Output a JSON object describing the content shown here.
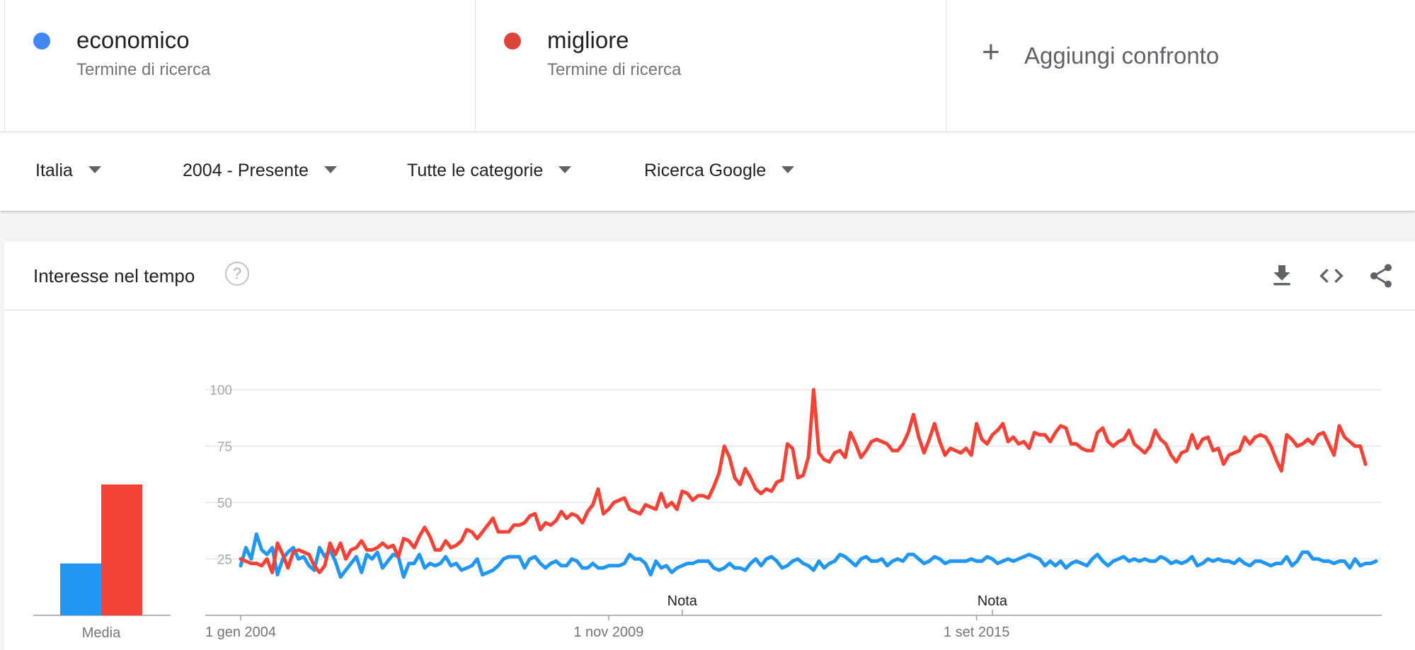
{
  "terms": [
    {
      "name": "economico",
      "subtitle": "Termine di ricerca",
      "color": "#4285f4"
    },
    {
      "name": "migliore",
      "subtitle": "Termine di ricerca",
      "color": "#db4437"
    }
  ],
  "add_compare": {
    "label": "Aggiungi confronto"
  },
  "filters": {
    "region": "Italia",
    "period": "2004 - Presente",
    "category": "Tutte le categorie",
    "property": "Ricerca Google"
  },
  "card": {
    "title": "Interesse nel tempo",
    "help_glyph": "?"
  },
  "icons": {
    "download": "download-icon",
    "embed": "embed-icon",
    "share": "share-icon",
    "help": "help-icon"
  },
  "chart_data": {
    "type": "line",
    "ylim": [
      0,
      100
    ],
    "yticks": [
      "25",
      "50",
      "75",
      "100"
    ],
    "xticks": [
      {
        "label": "1 gen 2004",
        "index": 0
      },
      {
        "label": "1 nov 2009",
        "index": 70
      },
      {
        "label": "1 set 2015",
        "index": 140
      }
    ],
    "notes": [
      {
        "label": "Nota",
        "index": 84
      },
      {
        "label": "Nota",
        "index": 143
      }
    ],
    "average": {
      "label": "Media",
      "values": [
        23,
        58
      ],
      "colors": [
        "#2196f3",
        "#f44336"
      ]
    },
    "series": [
      {
        "color": "#2196f3",
        "values": [
          22,
          30,
          25,
          36,
          29,
          27,
          30,
          18,
          25,
          28,
          30,
          25,
          26,
          22,
          20,
          30,
          26,
          29,
          24,
          17,
          20,
          23,
          26,
          19,
          27,
          25,
          28,
          21,
          24,
          27,
          26,
          17,
          23,
          23,
          27,
          21,
          23,
          22,
          23,
          26,
          22,
          23,
          20,
          21,
          22,
          25,
          18,
          19,
          20,
          22,
          25,
          26,
          26,
          26,
          21,
          25,
          26,
          23,
          21,
          23,
          24,
          22,
          22,
          25,
          24,
          21,
          21,
          23,
          21,
          21,
          22,
          22,
          22,
          23,
          27,
          25,
          25,
          23,
          18,
          24,
          21,
          22,
          19,
          21,
          22,
          23,
          23,
          24,
          24,
          24,
          21,
          20,
          21,
          23,
          21,
          21,
          20,
          23,
          25,
          22,
          25,
          26,
          24,
          21,
          22,
          24,
          25,
          23,
          22,
          20,
          24,
          21,
          23,
          24,
          27,
          26,
          24,
          22,
          25,
          26,
          24,
          24,
          25,
          22,
          24,
          25,
          24,
          27,
          27,
          25,
          23,
          24,
          26,
          25,
          23,
          24,
          24,
          24,
          24,
          25,
          24,
          24,
          26,
          25,
          23,
          24,
          25,
          24,
          25,
          26,
          27,
          26,
          25,
          22,
          24,
          22,
          24,
          21,
          23,
          24,
          23,
          22,
          25,
          27,
          24,
          22,
          24,
          25,
          26,
          24,
          25,
          24,
          25,
          24,
          24,
          26,
          25,
          23,
          24,
          23,
          24,
          26,
          22,
          23,
          25,
          24,
          25,
          24,
          24,
          23,
          25,
          23,
          22,
          24,
          24,
          23,
          22,
          23,
          23,
          26,
          22,
          24,
          28,
          28,
          25,
          25,
          24,
          24,
          23,
          24,
          24,
          21,
          25,
          22,
          23,
          23,
          24
        ]
      },
      {
        "color": "#f44336",
        "values": [
          25,
          24,
          23,
          23,
          22,
          25,
          19,
          32,
          27,
          21,
          28,
          29,
          28,
          27,
          22,
          19,
          22,
          32,
          27,
          32,
          25,
          29,
          30,
          33,
          29,
          29,
          30,
          32,
          30,
          31,
          26,
          34,
          33,
          30,
          35,
          39,
          35,
          29,
          29,
          33,
          30,
          31,
          33,
          38,
          37,
          34,
          37,
          40,
          43,
          37,
          37,
          37,
          40,
          40,
          41,
          44,
          45,
          38,
          41,
          40,
          42,
          46,
          43,
          45,
          44,
          41,
          46,
          49,
          56,
          45,
          47,
          50,
          51,
          52,
          47,
          46,
          45,
          49,
          48,
          47,
          54,
          48,
          50,
          47,
          55,
          54,
          51,
          53,
          53,
          52,
          57,
          63,
          75,
          70,
          61,
          58,
          65,
          61,
          56,
          54,
          56,
          55,
          59,
          60,
          76,
          74,
          61,
          62,
          70,
          100,
          72,
          69,
          68,
          72,
          73,
          70,
          81,
          76,
          70,
          73,
          77,
          78,
          77,
          76,
          73,
          73,
          76,
          81,
          89,
          79,
          72,
          78,
          85,
          77,
          71,
          74,
          73,
          72,
          74,
          71,
          85,
          78,
          76,
          80,
          82,
          85,
          77,
          79,
          76,
          77,
          74,
          81,
          80,
          80,
          77,
          81,
          84,
          83,
          76,
          76,
          74,
          73,
          73,
          81,
          83,
          77,
          75,
          77,
          78,
          82,
          76,
          74,
          72,
          75,
          82,
          78,
          76,
          71,
          68,
          72,
          73,
          80,
          74,
          78,
          79,
          73,
          74,
          67,
          71,
          72,
          73,
          79,
          76,
          79,
          80,
          79,
          75,
          69,
          64,
          80,
          78,
          75,
          76,
          78,
          76,
          80,
          81,
          76,
          71,
          84,
          79,
          77,
          75,
          75,
          67
        ]
      }
    ]
  }
}
